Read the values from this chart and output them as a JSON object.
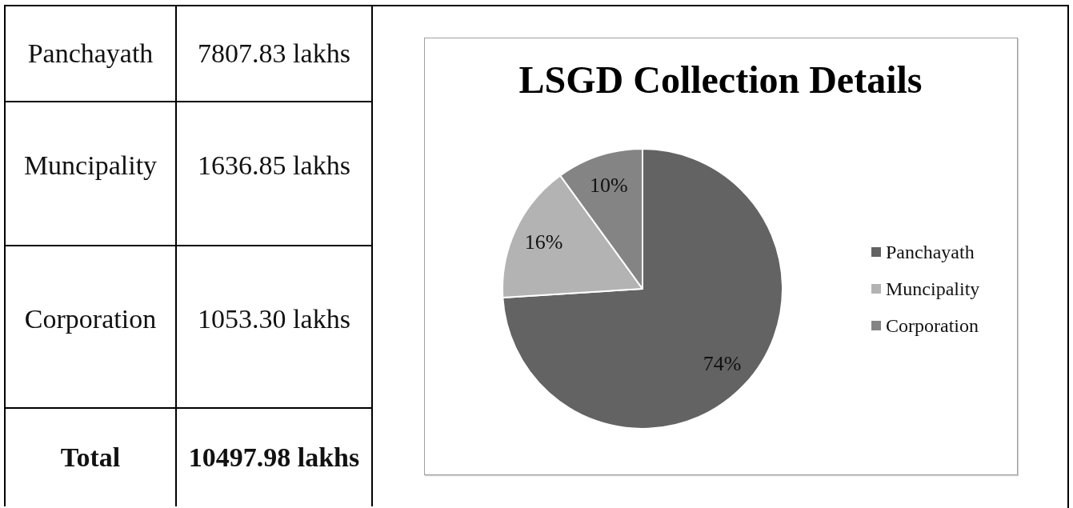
{
  "chart_data": {
    "type": "pie",
    "title": "LSGD Collection Details",
    "categories": [
      "Panchayath",
      "Muncipality",
      "Corporation"
    ],
    "values": [
      74,
      16,
      10
    ],
    "value_labels": [
      "74%",
      "16%",
      "10%"
    ],
    "colors": [
      "#636363",
      "#b3b3b3",
      "#848484"
    ],
    "legend": "right",
    "annotations": [
      "Panchayath",
      "7807.83 lakhs",
      "Muncipality",
      "1636.85 lakhs",
      "Corporation",
      "1053.30 lakhs",
      "Total",
      "10497.98 lakhs"
    ]
  }
}
